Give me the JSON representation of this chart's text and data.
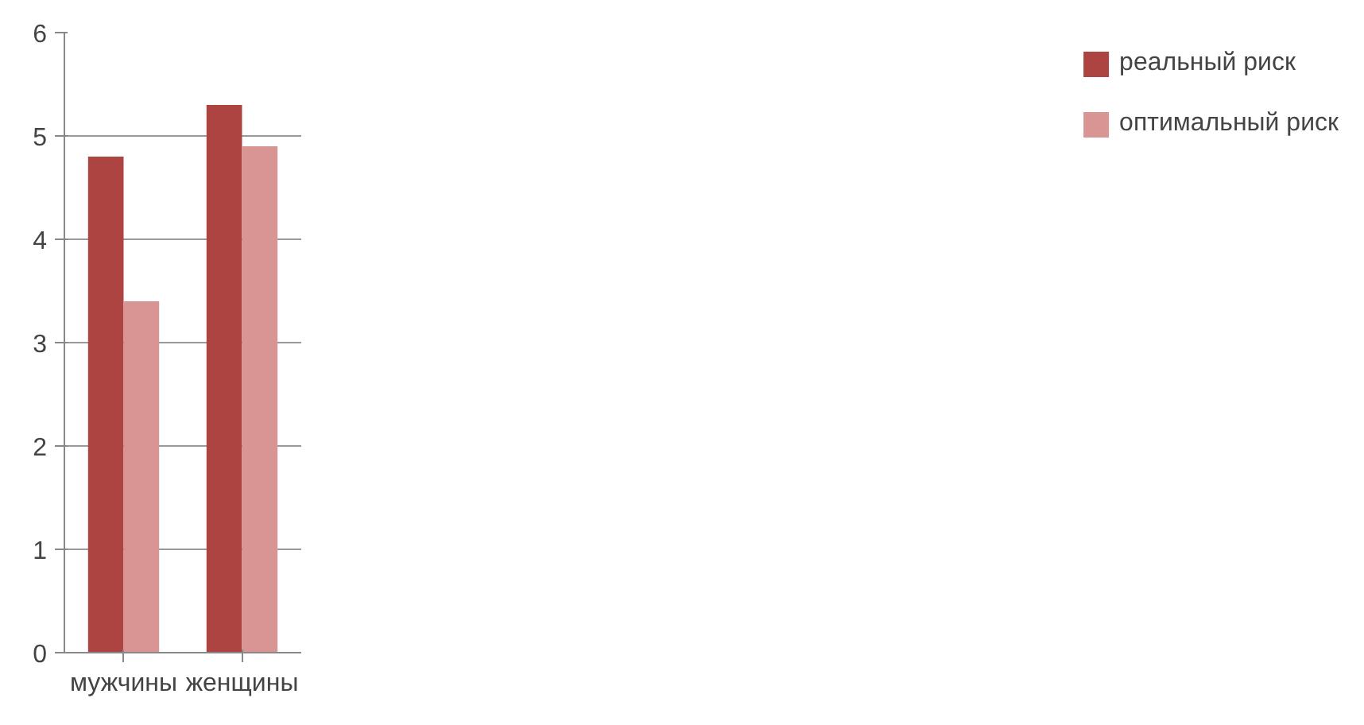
{
  "chart_data": {
    "type": "bar",
    "categories": [
      "мужчины",
      "женщины"
    ],
    "series": [
      {
        "name": "реальный риск",
        "color": "#ae4441",
        "values": [
          4.8,
          5.3
        ]
      },
      {
        "name": "оптимальный риск",
        "color": "#d99594",
        "values": [
          3.4,
          4.9
        ]
      }
    ],
    "ylim": [
      0,
      6
    ],
    "yticks": [
      0,
      1,
      2,
      3,
      4,
      5,
      6
    ],
    "grid": "y",
    "legend": "right"
  }
}
